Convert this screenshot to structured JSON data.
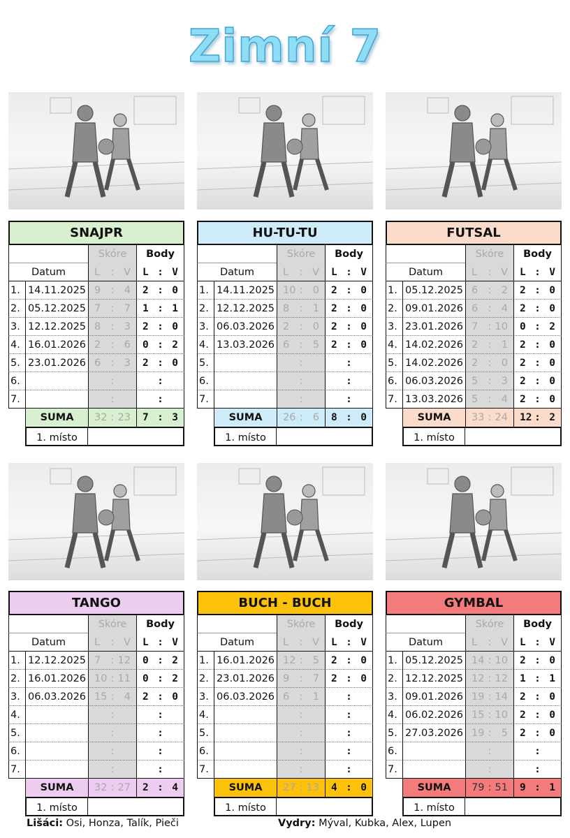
{
  "title": "Zimní 7",
  "labels": {
    "score": "Skóre",
    "points": "Body",
    "date": "Datum",
    "lv_left": "L",
    "lv_right": "V",
    "sep": ":",
    "sum": "SUMA",
    "place": "1. místo"
  },
  "tables": [
    {
      "name": "SNAJPR",
      "color": "#d9f0d0",
      "image": "boy-holding-ball",
      "rows": [
        [
          "1.",
          "14.11.2025",
          "9",
          "4",
          "2",
          "0"
        ],
        [
          "2.",
          "05.12.2025",
          "7",
          "7",
          "1",
          "1"
        ],
        [
          "3.",
          "12.12.2025",
          "8",
          "3",
          "2",
          "0"
        ],
        [
          "4.",
          "16.01.2026",
          "2",
          "6",
          "0",
          "2"
        ],
        [
          "5.",
          "23.01.2026",
          "6",
          "3",
          "2",
          "0"
        ],
        [
          "6.",
          "",
          "",
          "",
          "",
          ""
        ],
        [
          "7.",
          "",
          "",
          "",
          "",
          ""
        ]
      ],
      "sum": [
        "32",
        "23",
        "7",
        "3"
      ],
      "place": ""
    },
    {
      "name": "HU-TU-TU",
      "color": "#cdebf8",
      "image": "two-boys-wrestling",
      "rows": [
        [
          "1.",
          "14.11.2025",
          "10",
          "0",
          "2",
          "0"
        ],
        [
          "2.",
          "12.12.2025",
          "8",
          "1",
          "2",
          "0"
        ],
        [
          "3.",
          "06.03.2026",
          "2",
          "0",
          "2",
          "0"
        ],
        [
          "4.",
          "13.03.2026",
          "6",
          "5",
          "2",
          "0"
        ],
        [
          "5.",
          "",
          "",
          "",
          "",
          ""
        ],
        [
          "6.",
          "",
          "",
          "",
          "",
          ""
        ],
        [
          "7.",
          "",
          "",
          "",
          "",
          ""
        ]
      ],
      "sum": [
        "26",
        "6",
        "8",
        "0"
      ],
      "place": ""
    },
    {
      "name": "FUTSAL",
      "color": "#fbdccb",
      "image": "boys-playing-futsal",
      "rows": [
        [
          "1.",
          "05.12.2025",
          "6",
          "2",
          "2",
          "0"
        ],
        [
          "2.",
          "09.01.2026",
          "6",
          "4",
          "2",
          "0"
        ],
        [
          "3.",
          "23.01.2026",
          "7",
          "10",
          "0",
          "2"
        ],
        [
          "4.",
          "14.02.2026",
          "2",
          "1",
          "2",
          "0"
        ],
        [
          "5.",
          "14.02.2026",
          "2",
          "0",
          "2",
          "0"
        ],
        [
          "6.",
          "06.03.2026",
          "5",
          "3",
          "2",
          "0"
        ],
        [
          "7.",
          "13.03.2026",
          "5",
          "4",
          "2",
          "0"
        ]
      ],
      "sum": [
        "33",
        "24",
        "12",
        "2"
      ],
      "place": ""
    },
    {
      "name": "TANGO",
      "color": "#eccdf0",
      "image": "boy-dribbling-ball",
      "rows": [
        [
          "1.",
          "12.12.2025",
          "7",
          "12",
          "0",
          "2"
        ],
        [
          "2.",
          "16.01.2026",
          "10",
          "11",
          "0",
          "2"
        ],
        [
          "3.",
          "06.03.2026",
          "15",
          "4",
          "2",
          "0"
        ],
        [
          "4.",
          "",
          "",
          "",
          "",
          ""
        ],
        [
          "5.",
          "",
          "",
          "",
          "",
          ""
        ],
        [
          "6.",
          "",
          "",
          "",
          "",
          ""
        ],
        [
          "7.",
          "",
          "",
          "",
          "",
          ""
        ]
      ],
      "sum": [
        "32",
        "27",
        "2",
        "4"
      ],
      "place": ""
    },
    {
      "name": "BUCH - BUCH",
      "color": "#fcc20a",
      "image": "boys-dodgeball",
      "rows": [
        [
          "1.",
          "16.01.2026",
          "12",
          "5",
          "2",
          "0"
        ],
        [
          "2.",
          "23.01.2026",
          "9",
          "7",
          "2",
          "0"
        ],
        [
          "3.",
          "06.03.2026",
          "6",
          "1",
          "",
          ""
        ],
        [
          "4.",
          "",
          "",
          "",
          "",
          ""
        ],
        [
          "5.",
          "",
          "",
          "",
          "",
          ""
        ],
        [
          "6.",
          "",
          "",
          "",
          "",
          ""
        ],
        [
          "7.",
          "",
          "",
          "",
          "",
          ""
        ]
      ],
      "sum": [
        "27",
        "13",
        "4",
        "0"
      ],
      "place": ""
    },
    {
      "name": "GYMBAL",
      "color": "#f47b7b",
      "image": "boys-kicking-ball",
      "rows": [
        [
          "1.",
          "05.12.2025",
          "14",
          "10",
          "2",
          "0"
        ],
        [
          "2.",
          "12.12.2025",
          "12",
          "12",
          "1",
          "1"
        ],
        [
          "3.",
          "09.01.2026",
          "19",
          "14",
          "2",
          "0"
        ],
        [
          "4.",
          "06.02.2026",
          "15",
          "10",
          "2",
          "0"
        ],
        [
          "5.",
          "27.03.2026",
          "19",
          "5",
          "2",
          "0"
        ],
        [
          "6.",
          "",
          "",
          "",
          "",
          ""
        ],
        [
          "7.",
          "",
          "",
          "",
          "",
          ""
        ]
      ],
      "sum": [
        "79",
        "51",
        "9",
        "1"
      ],
      "place": ""
    }
  ],
  "footer": {
    "team1_label": "Lišáci:",
    "team1_members": " Osi, Honza, Talík, Pieči",
    "team2_label": "Vydry:",
    "team2_members": " Mýval, Kubka, Alex, Lupen"
  }
}
